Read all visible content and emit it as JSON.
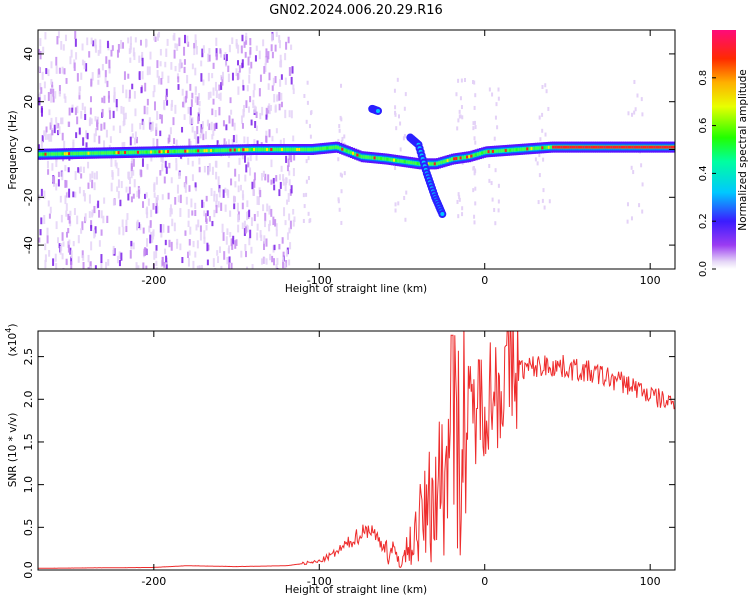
{
  "title": "GN02.2024.006.20.29.R16",
  "chart_data": [
    {
      "type": "heatmap",
      "xlabel": "Height of straight line (km)",
      "ylabel": "Frequency (Hz)",
      "xlim": [
        -270,
        115
      ],
      "ylim": [
        -50,
        50
      ],
      "xticks": [
        -200,
        -100,
        0,
        100
      ],
      "yticks": [
        -40,
        -20,
        0,
        20,
        40
      ],
      "colorbar": {
        "label": "Normalized spectral amplitude",
        "range": [
          0,
          1
        ],
        "ticks": [
          0.0,
          0.2,
          0.4,
          0.6,
          0.8
        ],
        "colormap": "rainbow (violet-blue-cyan-green-yellow-red-pink)"
      },
      "ridge": {
        "x": [
          -270,
          -200,
          -140,
          -105,
          -90,
          -75,
          -60,
          -50,
          -40,
          -30,
          -20,
          -10,
          0,
          20,
          40,
          60,
          80,
          100,
          115
        ],
        "frequency": [
          -2,
          -1,
          0,
          0,
          1,
          -3,
          -4,
          -5,
          -6,
          -6,
          -4,
          -3,
          -1,
          0,
          1,
          1,
          1,
          1,
          1
        ]
      },
      "noise_region_x": [
        -270,
        -115
      ],
      "branches": [
        {
          "x": [
            -45,
            -40,
            -35,
            -30,
            -25
          ],
          "frequency": [
            5,
            2,
            -10,
            -20,
            -28
          ]
        },
        {
          "x": [
            -68,
            -64
          ],
          "frequency": [
            17,
            16
          ]
        }
      ]
    },
    {
      "type": "line",
      "xlabel": "Height of straight line (km)",
      "ylabel": "SNR (10 * v/v)",
      "exponent_label": "(x10",
      "exponent_power": "4",
      "exponent_close": ")",
      "xlim": [
        -270,
        115
      ],
      "ylim": [
        0,
        2.8
      ],
      "xticks": [
        -200,
        -100,
        0,
        100
      ],
      "yticks": [
        "0.0",
        "0.5",
        "1.0",
        "1.5",
        "2.0",
        "2.5"
      ],
      "color": "#ee2c2c",
      "series": [
        {
          "x": [
            -270,
            -200,
            -180,
            -150,
            -120,
            -100,
            -90,
            -80,
            -70,
            -60,
            -50,
            -45,
            -40,
            -35,
            -30,
            -25,
            -22,
            -20,
            -18,
            -15,
            -10,
            -5,
            0,
            5,
            10,
            15,
            20,
            30,
            40,
            50,
            60,
            70,
            80,
            90,
            100,
            110,
            115
          ],
          "y": [
            0.02,
            0.03,
            0.05,
            0.04,
            0.05,
            0.1,
            0.2,
            0.35,
            0.5,
            0.25,
            0.1,
            0.3,
            0.5,
            0.7,
            0.9,
            1.1,
            1.3,
            1.2,
            1.4,
            1.6,
            1.8,
            1.9,
            2.05,
            2.1,
            2.2,
            2.3,
            2.35,
            2.38,
            2.4,
            2.37,
            2.33,
            2.28,
            2.22,
            2.15,
            2.05,
            1.97,
            1.95
          ]
        }
      ]
    }
  ]
}
